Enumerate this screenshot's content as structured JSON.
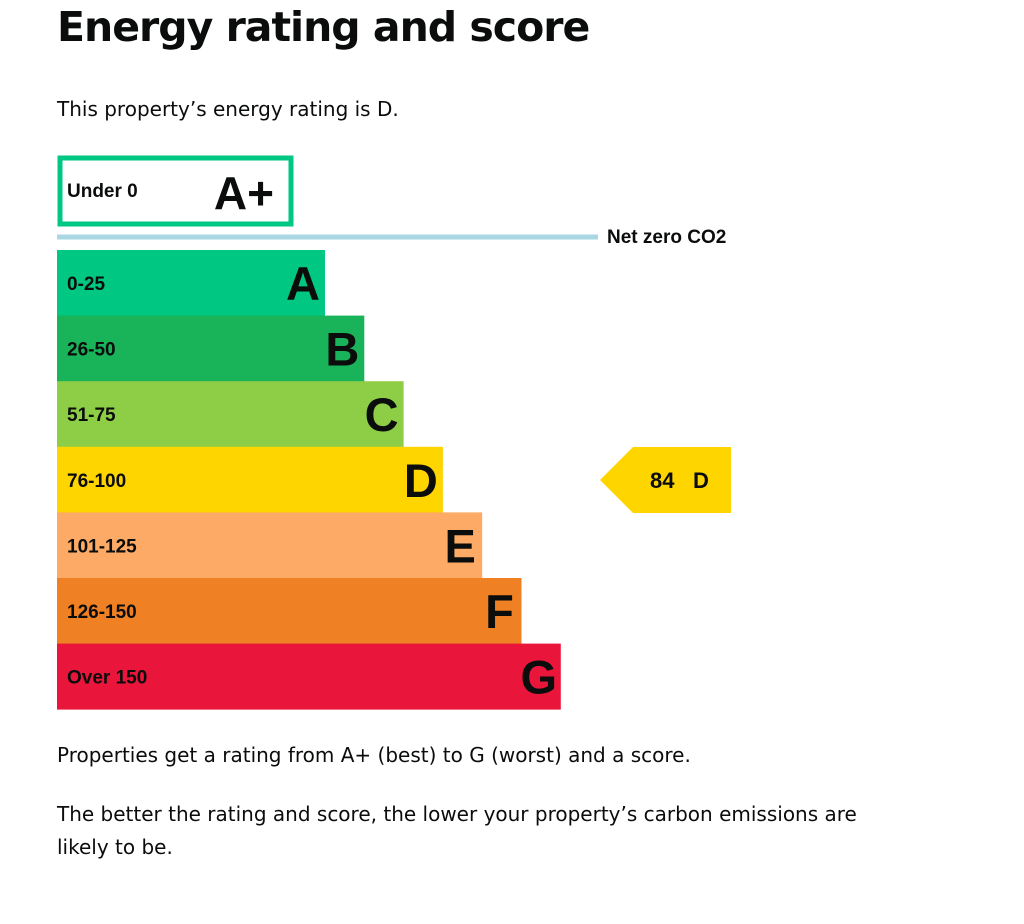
{
  "heading": "Energy rating and score",
  "intro": "This property’s energy rating is D.",
  "explanation": {
    "range": "Properties get a rating from A+ (best) to G (worst) and a score.",
    "better": "The better the rating and score, the lower your property’s carbon emissions are likely to be."
  },
  "colors": {
    "aplus_border": "#00c781",
    "net_zero_line": "#a9d7e4",
    "A": "#00c781",
    "B": "#19b459",
    "C": "#8dce46",
    "D": "#ffd500",
    "E": "#fcaa65",
    "F": "#ef8023",
    "G": "#e9153b"
  },
  "chart_data": {
    "type": "bar",
    "orientation": "horizontal",
    "net_zero_label": "Net zero CO2",
    "bands": [
      {
        "rating": "A+",
        "range": "Under 0",
        "style": "outline"
      },
      {
        "rating": "A",
        "range": "0-25"
      },
      {
        "rating": "B",
        "range": "26-50"
      },
      {
        "rating": "C",
        "range": "51-75"
      },
      {
        "rating": "D",
        "range": "76-100"
      },
      {
        "rating": "E",
        "range": "101-125"
      },
      {
        "rating": "F",
        "range": "126-150"
      },
      {
        "rating": "G",
        "range": "Over 150"
      }
    ],
    "current": {
      "score": "84",
      "rating": "D"
    }
  }
}
